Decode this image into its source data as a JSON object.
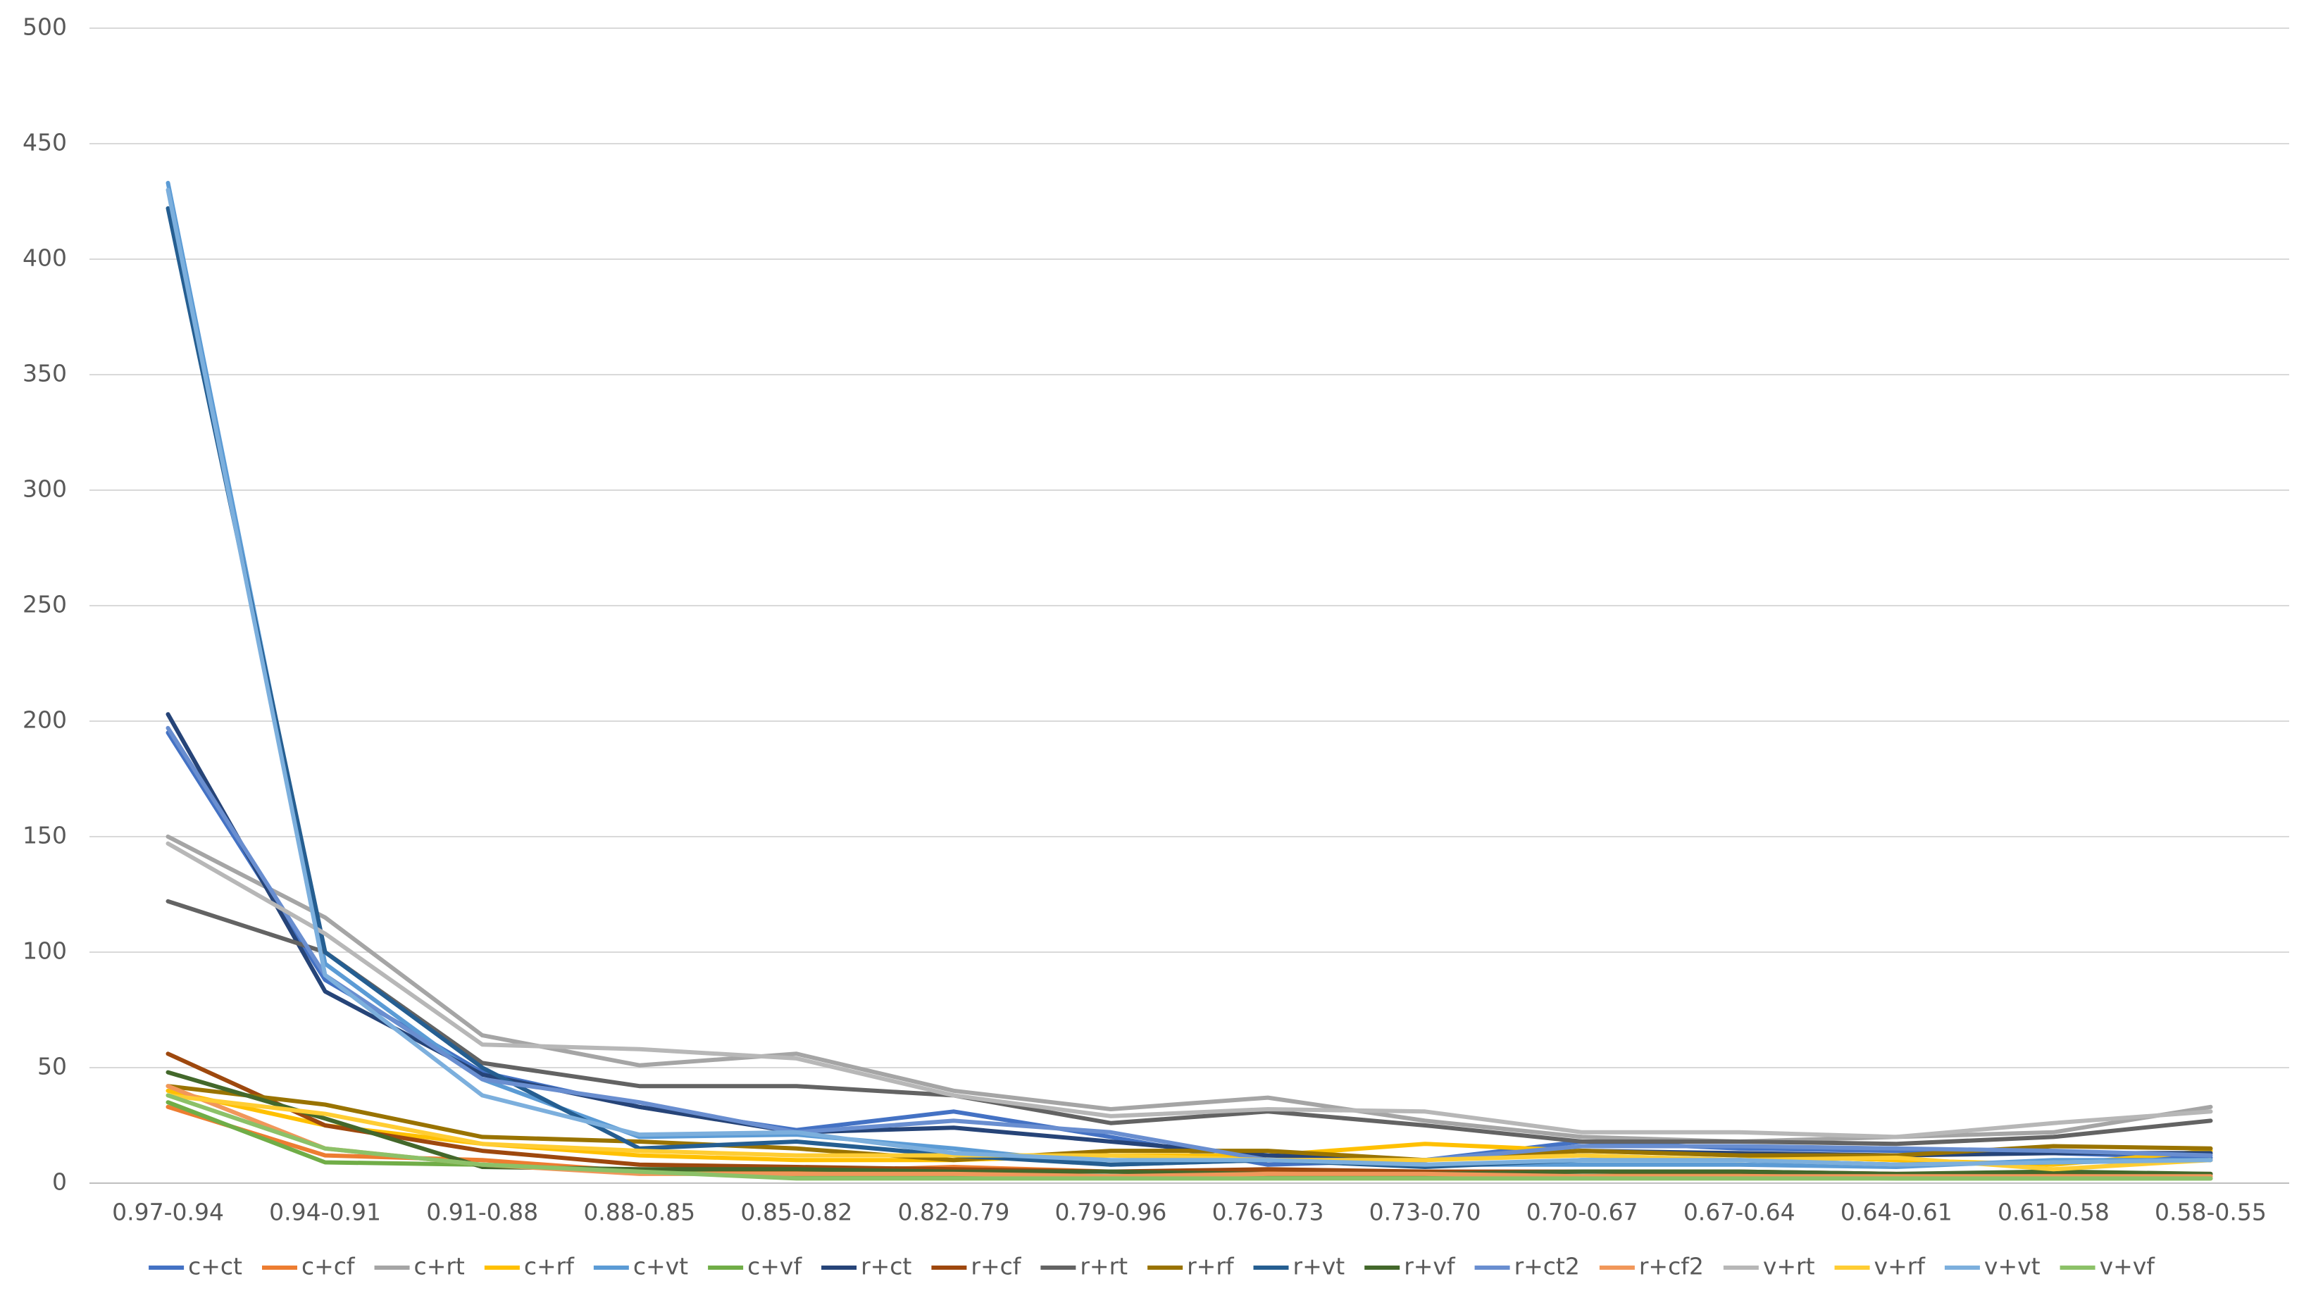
{
  "chart_data": {
    "type": "line",
    "categories": [
      "0.97-0.94",
      "0.94-0.91",
      "0.91-0.88",
      "0.88-0.85",
      "0.85-0.82",
      "0.82-0.79",
      "0.79-0.96",
      "0.76-0.73",
      "0.73-0.70",
      "0.70-0.67",
      "0.67-0.64",
      "0.64-0.61",
      "0.61-0.58",
      "0.58-0.55"
    ],
    "ylim": [
      0,
      500
    ],
    "yticks": [
      0,
      50,
      100,
      150,
      200,
      250,
      300,
      350,
      400,
      450,
      500
    ],
    "grid": true,
    "legend": "bottom",
    "series": [
      {
        "name": "c+ct",
        "color": "#4472c4",
        "values": [
          195,
          88,
          48,
          33,
          23,
          31,
          20,
          8,
          10,
          18,
          15,
          14,
          13,
          11
        ]
      },
      {
        "name": "c+cf",
        "color": "#ed7d31",
        "values": [
          33,
          12,
          10,
          5,
          5,
          7,
          5,
          5,
          4,
          3,
          4,
          3,
          4,
          3
        ]
      },
      {
        "name": "c+rt",
        "color": "#a5a5a5",
        "values": [
          150,
          115,
          64,
          51,
          56,
          40,
          32,
          37,
          27,
          20,
          18,
          20,
          22,
          33
        ]
      },
      {
        "name": "c+rf",
        "color": "#ffc000",
        "values": [
          40,
          25,
          17,
          12,
          10,
          10,
          12,
          12,
          17,
          14,
          12,
          10,
          8,
          14
        ]
      },
      {
        "name": "c+vt",
        "color": "#5b9bd5",
        "values": [
          433,
          95,
          45,
          20,
          21,
          15,
          8,
          10,
          8,
          8,
          8,
          7,
          10,
          10
        ]
      },
      {
        "name": "c+vf",
        "color": "#70ad47",
        "values": [
          35,
          9,
          8,
          5,
          3,
          3,
          3,
          3,
          3,
          3,
          3,
          2,
          2,
          2
        ]
      },
      {
        "name": "r+ct",
        "color": "#264478",
        "values": [
          203,
          83,
          47,
          33,
          22,
          24,
          18,
          12,
          10,
          14,
          13,
          12,
          13,
          13
        ]
      },
      {
        "name": "r+cf",
        "color": "#9e480e",
        "values": [
          56,
          25,
          14,
          8,
          7,
          6,
          5,
          6,
          5,
          5,
          5,
          4,
          4,
          4
        ]
      },
      {
        "name": "r+rt",
        "color": "#636363",
        "values": [
          122,
          100,
          52,
          42,
          42,
          38,
          26,
          31,
          25,
          18,
          18,
          17,
          20,
          27
        ]
      },
      {
        "name": "r+rf",
        "color": "#997300",
        "values": [
          42,
          34,
          20,
          18,
          15,
          10,
          14,
          14,
          10,
          14,
          12,
          12,
          16,
          15
        ]
      },
      {
        "name": "r+vt",
        "color": "#255e91",
        "values": [
          422,
          100,
          50,
          15,
          18,
          12,
          8,
          10,
          7,
          10,
          10,
          8,
          9,
          10
        ]
      },
      {
        "name": "r+vf",
        "color": "#43682b",
        "values": [
          48,
          28,
          7,
          6,
          6,
          5,
          5,
          4,
          4,
          5,
          5,
          4,
          5,
          4
        ]
      },
      {
        "name": "r+ct2",
        "color": "#698ed0",
        "values": [
          197,
          90,
          45,
          35,
          22,
          27,
          22,
          10,
          10,
          16,
          16,
          15,
          14,
          12
        ]
      },
      {
        "name": "r+cf2",
        "color": "#f1975a",
        "values": [
          42,
          15,
          8,
          4,
          4,
          4,
          3,
          4,
          4,
          3,
          3,
          3,
          3,
          3
        ]
      },
      {
        "name": "v+rt",
        "color": "#b7b7b7",
        "values": [
          147,
          108,
          60,
          58,
          54,
          38,
          29,
          32,
          31,
          22,
          22,
          20,
          26,
          31
        ]
      },
      {
        "name": "v+rf",
        "color": "#ffcd33",
        "values": [
          38,
          30,
          17,
          14,
          12,
          12,
          12,
          10,
          10,
          12,
          10,
          11,
          6,
          10
        ]
      },
      {
        "name": "v+vt",
        "color": "#7cafdd",
        "values": [
          430,
          90,
          38,
          21,
          22,
          13,
          10,
          10,
          8,
          10,
          10,
          8,
          9,
          10
        ]
      },
      {
        "name": "v+vf",
        "color": "#8cc168",
        "values": [
          38,
          15,
          8,
          5,
          2,
          2,
          2,
          2,
          2,
          2,
          2,
          2,
          2,
          2
        ]
      }
    ]
  }
}
